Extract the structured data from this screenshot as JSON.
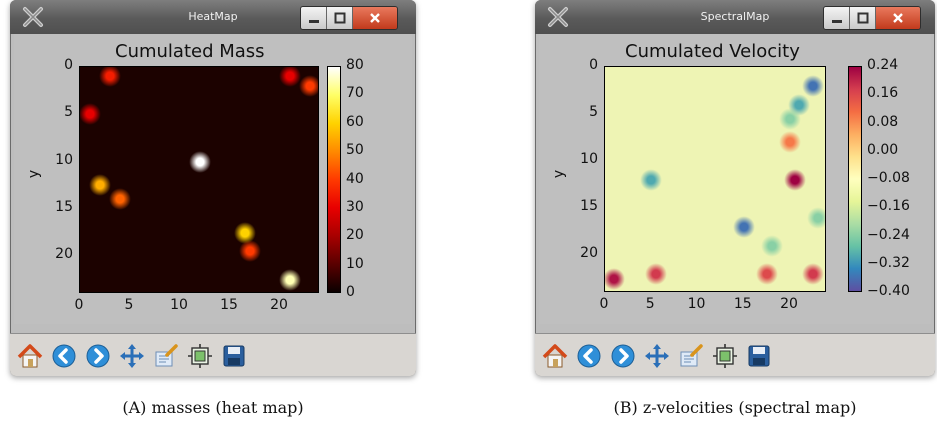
{
  "windows": [
    {
      "title": "HeatMap",
      "chart_data": {
        "type": "heatmap",
        "title": "Cumulated Mass",
        "xlabel": "",
        "ylabel": "y",
        "xticks": [
          "0",
          "5",
          "10",
          "15",
          "20"
        ],
        "yticks": [
          "0",
          "5",
          "10",
          "15",
          "20"
        ],
        "xlim": [
          0,
          24
        ],
        "ylim": [
          24,
          0
        ],
        "colormap": "hot",
        "colorbar": {
          "min": 0,
          "max": 80,
          "ticks": [
            "80",
            "70",
            "60",
            "50",
            "40",
            "30",
            "20",
            "10",
            "0"
          ]
        },
        "hotspots": [
          {
            "x": 12,
            "y": 10,
            "value": 80
          },
          {
            "x": 2,
            "y": 12.5,
            "value": 55
          },
          {
            "x": 16.5,
            "y": 17.5,
            "value": 60
          },
          {
            "x": 4,
            "y": 14,
            "value": 45
          },
          {
            "x": 21,
            "y": 22.5,
            "value": 75
          },
          {
            "x": 23,
            "y": 2,
            "value": 40
          },
          {
            "x": 3,
            "y": 1,
            "value": 35
          },
          {
            "x": 17,
            "y": 19.5,
            "value": 40
          },
          {
            "x": 1,
            "y": 5,
            "value": 30
          },
          {
            "x": 21,
            "y": 1,
            "value": 30
          }
        ]
      }
    },
    {
      "title": "SpectralMap",
      "chart_data": {
        "type": "heatmap",
        "title": "Cumulated Velocity",
        "xlabel": "",
        "ylabel": "y",
        "xticks": [
          "0",
          "5",
          "10",
          "15",
          "20"
        ],
        "yticks": [
          "0",
          "5",
          "10",
          "15",
          "20"
        ],
        "xlim": [
          0,
          24
        ],
        "ylim": [
          24,
          0
        ],
        "colormap": "spectral",
        "colorbar": {
          "min": -0.4,
          "max": 0.24,
          "ticks": [
            "0.24",
            "0.16",
            "0.08",
            "0.00",
            "−0.08",
            "−0.16",
            "−0.24",
            "−0.32",
            "−0.40"
          ]
        },
        "hotspots": [
          {
            "x": 22.5,
            "y": 2,
            "value": -0.36
          },
          {
            "x": 21,
            "y": 4,
            "value": -0.3
          },
          {
            "x": 20,
            "y": 5.5,
            "value": -0.24
          },
          {
            "x": 15,
            "y": 17,
            "value": -0.36
          },
          {
            "x": 5,
            "y": 12,
            "value": -0.3
          },
          {
            "x": 18,
            "y": 19,
            "value": -0.24
          },
          {
            "x": 23,
            "y": 16,
            "value": -0.24
          },
          {
            "x": 20.5,
            "y": 12,
            "value": 0.24
          },
          {
            "x": 1,
            "y": 22.5,
            "value": 0.22
          },
          {
            "x": 5.5,
            "y": 22,
            "value": 0.18
          },
          {
            "x": 17.5,
            "y": 22,
            "value": 0.16
          },
          {
            "x": 22.5,
            "y": 22,
            "value": 0.18
          },
          {
            "x": 20,
            "y": 8,
            "value": 0.1
          }
        ]
      }
    }
  ],
  "toolbar_icons": [
    "home-icon",
    "back-icon",
    "forward-icon",
    "pan-icon",
    "zoom-icon",
    "subplots-icon",
    "save-icon"
  ],
  "captions": [
    "(A) masses (heat map)",
    "(B) z-velocities (spectral map)"
  ],
  "colors": {
    "hot": [
      "#0b0000",
      "#5a0000",
      "#a80000",
      "#e80000",
      "#ff3a00",
      "#ff8a00",
      "#ffd200",
      "#ffff66",
      "#ffffff"
    ],
    "spectral": [
      "#9e0142",
      "#d53e4f",
      "#f46d43",
      "#fdae61",
      "#fee08b",
      "#ffffbf",
      "#e6f598",
      "#abdda4",
      "#66c2a5",
      "#3288bd",
      "#5e4fa2"
    ],
    "hot_background": "#1c0200",
    "spectral_background": "#eef4b4"
  }
}
